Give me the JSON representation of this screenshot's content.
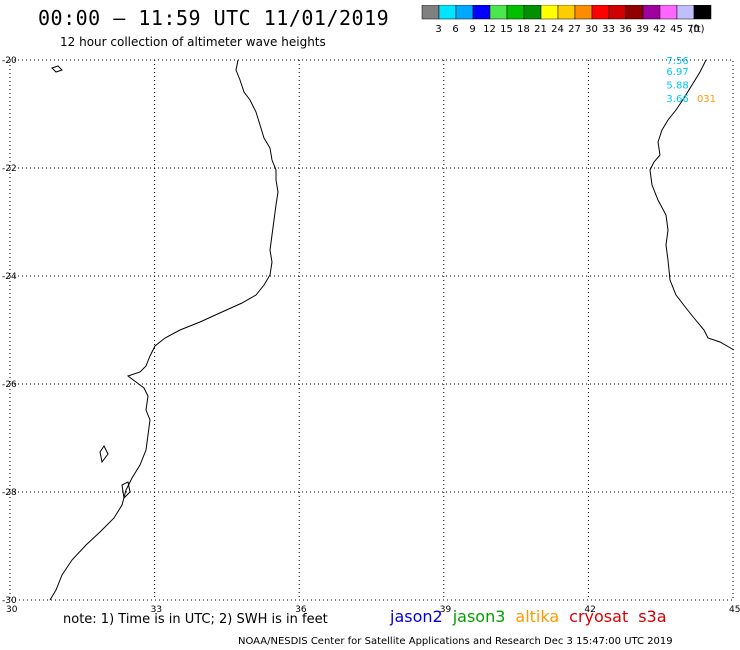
{
  "header": {
    "title": "00:00 – 11:59 UTC 11/01/2019",
    "subtitle": "12 hour collection of altimeter wave heights"
  },
  "legend": {
    "units": "(ft)",
    "bins": [
      {
        "label": "3",
        "color": "#808080"
      },
      {
        "label": "6",
        "color": "#00e5ff"
      },
      {
        "label": "9",
        "color": "#00a8ff"
      },
      {
        "label": "12",
        "color": "#0000ff"
      },
      {
        "label": "15",
        "color": "#4de64d"
      },
      {
        "label": "18",
        "color": "#00c000"
      },
      {
        "label": "21",
        "color": "#009000"
      },
      {
        "label": "24",
        "color": "#ffff00"
      },
      {
        "label": "27",
        "color": "#ffcc00"
      },
      {
        "label": "30",
        "color": "#ff8c00"
      },
      {
        "label": "33",
        "color": "#ff0000"
      },
      {
        "label": "36",
        "color": "#d00000"
      },
      {
        "label": "39",
        "color": "#900000"
      },
      {
        "label": "42",
        "color": "#a000a0"
      },
      {
        "label": "45",
        "color": "#ff66ff"
      },
      {
        "label": "70",
        "color": "#bfbfff"
      },
      {
        "label": "",
        "color": "#000000"
      }
    ]
  },
  "chart_data": {
    "type": "map",
    "xlim": [
      30,
      45
    ],
    "ylim": [
      -30,
      -20
    ],
    "xticks": [
      "30",
      "33",
      "36",
      "39",
      "42",
      "45"
    ],
    "yticks": [
      "-20",
      "-22",
      "-24",
      "-26",
      "-28",
      "-30"
    ],
    "grid": true,
    "observations": [
      {
        "lon": 43.85,
        "lat": -20.0,
        "label": "7.56",
        "color": "#00c8ff"
      },
      {
        "lon": 43.85,
        "lat": -20.2,
        "label": "6.97",
        "color": "#00c8ff"
      },
      {
        "lon": 43.85,
        "lat": -20.45,
        "label": "5.88",
        "color": "#00c8ff"
      },
      {
        "lon": 43.85,
        "lat": -20.7,
        "label": "3.66",
        "color": "#00c8ff"
      },
      {
        "lon": 44.45,
        "lat": -20.7,
        "label": "031",
        "color": "#ff9900"
      }
    ]
  },
  "footer": {
    "note": "note: 1) Time is in UTC; 2) SWH is in feet",
    "credit": "NOAA/NESDIS Center for Satellite Applications and Research    Dec  3 15:47:00 UTC 2019"
  },
  "satellites": [
    {
      "name": "jason2",
      "color": "#0000dd"
    },
    {
      "name": "jason3",
      "color": "#00a000"
    },
    {
      "name": "altika",
      "color": "#ff9900"
    },
    {
      "name": "cryosat",
      "color": "#dd0000"
    },
    {
      "name": "s3a",
      "color": "#cc0000"
    }
  ]
}
